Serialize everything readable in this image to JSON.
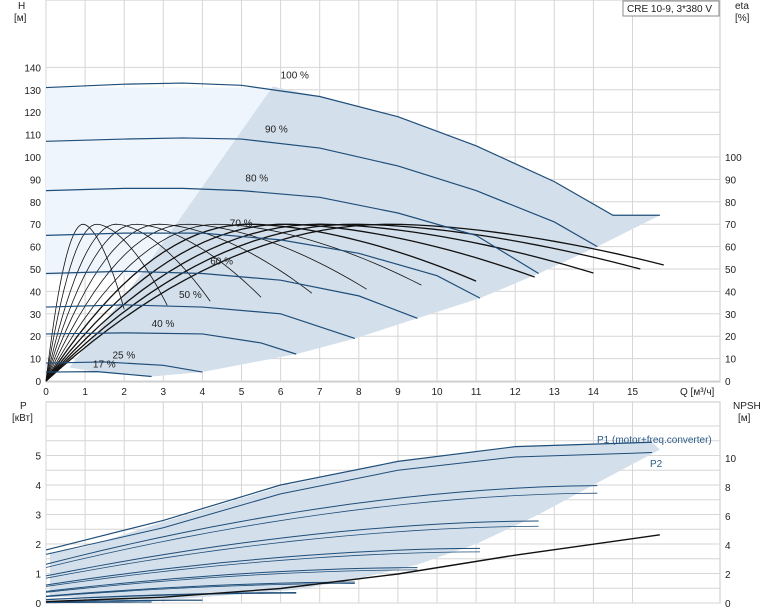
{
  "chart_data": [
    {
      "type": "line",
      "panel": "top",
      "legend_box": "CRE 10-9, 3*380 V",
      "y_left_label": "H",
      "y_left_unit": "[м]",
      "y_right_label": "eta",
      "y_right_unit": "[%]",
      "x_label": "Q [м³/ч]",
      "x_ticks": [
        0,
        1,
        2,
        3,
        4,
        5,
        6,
        7,
        8,
        9,
        10,
        11,
        12,
        13,
        14,
        15
      ],
      "y_left_ticks": [
        0,
        10,
        20,
        30,
        40,
        50,
        60,
        70,
        80,
        90,
        100,
        110,
        120,
        130,
        140
      ],
      "y_right_ticks": [
        0,
        10,
        20,
        30,
        40,
        50,
        60,
        70,
        80,
        90,
        100
      ],
      "xlim": [
        0,
        17.3
      ],
      "ylim": [
        0,
        160
      ],
      "grid": true,
      "speed_curves": [
        {
          "label": "100 %",
          "points": [
            [
              0,
              131
            ],
            [
              2,
              132.5
            ],
            [
              3.5,
              133
            ],
            [
              5,
              132
            ],
            [
              7,
              127
            ],
            [
              9,
              118
            ],
            [
              11,
              105
            ],
            [
              13,
              89
            ],
            [
              14.5,
              74
            ],
            [
              15.7,
              74
            ]
          ]
        },
        {
          "label": "90 %",
          "points": [
            [
              0,
              107
            ],
            [
              2,
              108
            ],
            [
              3.5,
              108.5
            ],
            [
              5,
              108
            ],
            [
              7,
              104
            ],
            [
              9,
              96
            ],
            [
              11,
              85
            ],
            [
              13,
              71
            ],
            [
              14.1,
              60
            ]
          ]
        },
        {
          "label": "80 %",
          "points": [
            [
              0,
              85
            ],
            [
              2,
              86
            ],
            [
              3.5,
              86
            ],
            [
              5,
              85
            ],
            [
              7,
              82
            ],
            [
              9,
              75
            ],
            [
              11,
              65
            ],
            [
              12.6,
              48
            ]
          ]
        },
        {
          "label": "70 %",
          "points": [
            [
              0,
              65
            ],
            [
              2,
              66
            ],
            [
              4,
              66
            ],
            [
              6,
              63
            ],
            [
              8,
              57
            ],
            [
              10,
              47
            ],
            [
              11.1,
              37
            ]
          ]
        },
        {
          "label": "60 %",
          "points": [
            [
              0,
              48
            ],
            [
              2,
              49
            ],
            [
              4,
              48
            ],
            [
              6,
              45
            ],
            [
              8,
              38
            ],
            [
              9.5,
              28
            ]
          ]
        },
        {
          "label": "50 %",
          "points": [
            [
              0,
              33
            ],
            [
              2,
              34
            ],
            [
              4,
              33
            ],
            [
              6,
              30
            ],
            [
              7.9,
              19
            ]
          ]
        },
        {
          "label": "40 %",
          "points": [
            [
              0,
              21
            ],
            [
              2,
              21.5
            ],
            [
              4,
              21
            ],
            [
              5.5,
              17
            ],
            [
              6.4,
              12
            ]
          ]
        },
        {
          "label": "25 %",
          "points": [
            [
              0,
              8
            ],
            [
              1.5,
              8.5
            ],
            [
              3,
              7
            ],
            [
              4,
              4
            ]
          ]
        },
        {
          "label": "17 %",
          "points": [
            [
              0,
              4
            ],
            [
              1.3,
              4.2
            ],
            [
              2.7,
              2
            ]
          ]
        }
      ],
      "eta_peak_percent": 70,
      "curve_labels": [
        "100 %",
        "90 %",
        "80 %",
        "70 %",
        "60 %",
        "50 %",
        "40 %",
        "25 %",
        "17 %"
      ]
    },
    {
      "type": "line",
      "panel": "bottom",
      "y_left_label": "P",
      "y_left_unit": "[кВт]",
      "y_right_label": "NPSH",
      "y_right_unit": "[м]",
      "y_left_ticks": [
        0,
        1,
        2,
        3,
        4,
        5
      ],
      "y_right_ticks": [
        0,
        2,
        4,
        6,
        8,
        10
      ],
      "xlim": [
        0,
        17.3
      ],
      "ylim": [
        0,
        6
      ],
      "npsh_lim": [
        0,
        12.5
      ],
      "grid": true,
      "series_labels": [
        "P1 (motor+freq.converter)",
        "P2"
      ],
      "p1_100": [
        [
          0,
          1.8
        ],
        [
          3,
          2.8
        ],
        [
          6,
          4.0
        ],
        [
          9,
          4.8
        ],
        [
          12,
          5.3
        ],
        [
          15.5,
          5.45
        ]
      ],
      "p2_100": [
        [
          0,
          1.65
        ],
        [
          3,
          2.55
        ],
        [
          6,
          3.7
        ],
        [
          9,
          4.5
        ],
        [
          12,
          4.95
        ],
        [
          15.5,
          5.1
        ]
      ],
      "npsh": [
        [
          0,
          0.1
        ],
        [
          3,
          0.4
        ],
        [
          6,
          1.0
        ],
        [
          9,
          2.0
        ],
        [
          12,
          3.3
        ],
        [
          15.7,
          4.7
        ]
      ]
    }
  ]
}
